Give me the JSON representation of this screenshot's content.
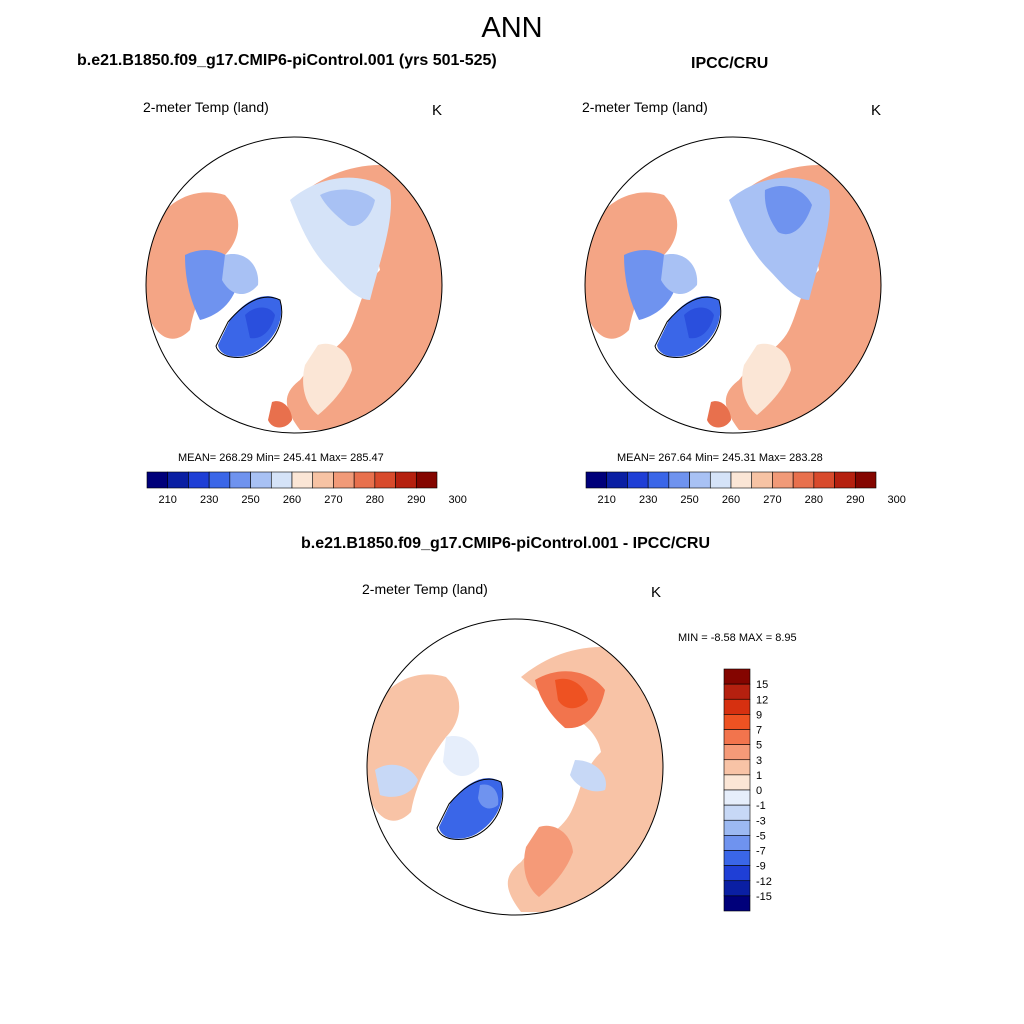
{
  "main_title": "ANN",
  "panels": [
    {
      "case_title": "b.e21.B1850.f09_g17.CMIP6-piControl.001 (yrs 501-525)",
      "variable": "2-meter Temp (land)",
      "units": "K",
      "stats": "MEAN= 268.29  Min= 245.41  Max= 285.47"
    },
    {
      "case_title": "IPCC/CRU",
      "variable": "2-meter Temp (land)",
      "units": "K",
      "stats": "MEAN= 267.64  Min= 245.31  Max= 283.28"
    },
    {
      "case_title": "b.e21.B1850.f09_g17.CMIP6-piControl.001 - IPCC/CRU",
      "variable": "2-meter Temp (land)",
      "units": "K",
      "stats": "MIN =  -8.58 MAX =   8.95"
    }
  ],
  "abs_colorbar": {
    "labels": [
      "210",
      "230",
      "250",
      "260",
      "270",
      "280",
      "290",
      "300"
    ],
    "colors": [
      "#00007a",
      "#0a1fa3",
      "#1f3fd6",
      "#3a66e8",
      "#6f93ef",
      "#a8c1f4",
      "#d5e3f8",
      "#fbe6d6",
      "#f7c3a4",
      "#f19a78",
      "#e8704d",
      "#d84a2c",
      "#b5200f",
      "#840500"
    ]
  },
  "diff_colorbar": {
    "labels": [
      "15",
      "12",
      "9",
      "7",
      "5",
      "3",
      "1",
      "0",
      "-1",
      "-3",
      "-5",
      "-7",
      "-9",
      "-12",
      "-15"
    ],
    "colors": [
      "#840500",
      "#b5200f",
      "#d63010",
      "#ee5222",
      "#f2744d",
      "#f59a78",
      "#f8c3a6",
      "#fbe6d6",
      "#e6eefb",
      "#c7d8f6",
      "#9cb9f2",
      "#6f93ef",
      "#3a66e8",
      "#1f3fd6",
      "#0a1fa3",
      "#00007a"
    ]
  },
  "map": {
    "land_color_warm": "#f4a585",
    "land_color_cold": "#6f93ef",
    "outline_color": "#000000"
  }
}
